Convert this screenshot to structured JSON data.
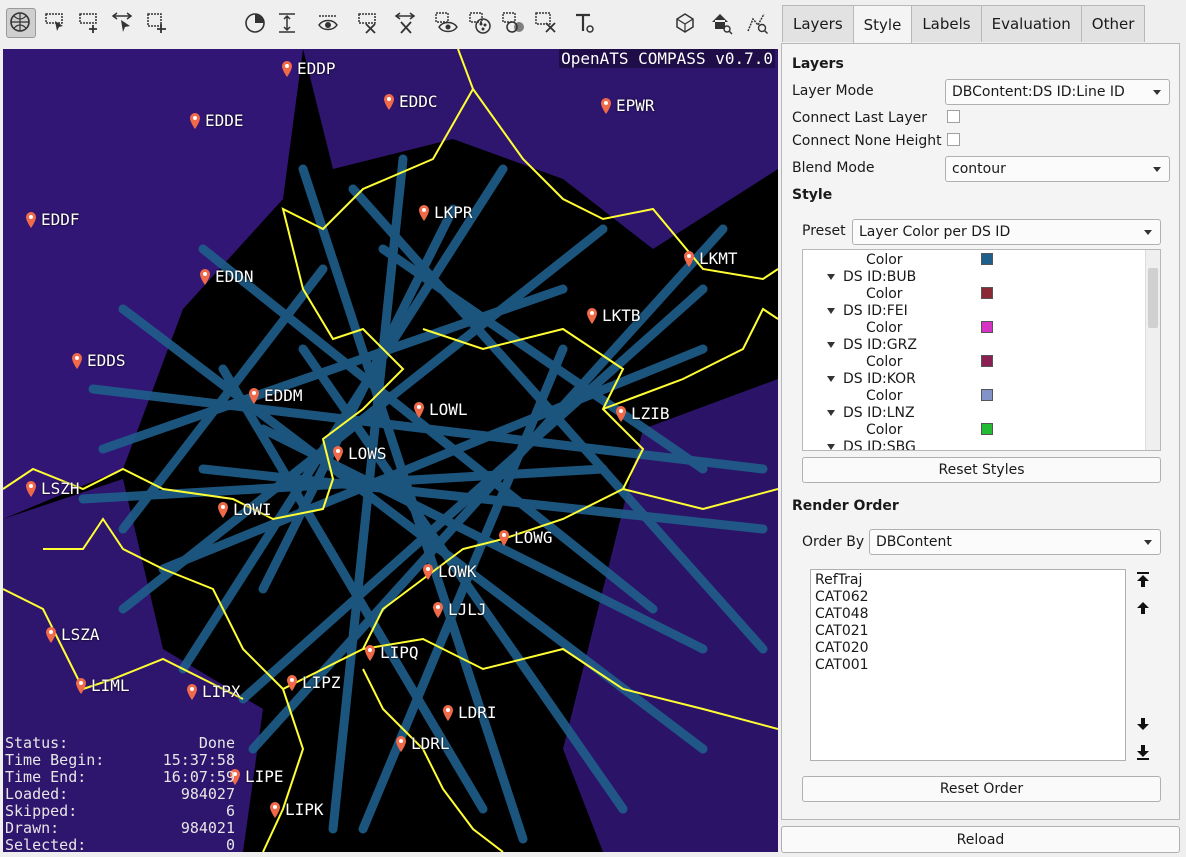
{
  "toolbar": {
    "left_tools": [
      "navigate-icon",
      "select-rect-icon",
      "add-rect-icon",
      "select-move-icon",
      "add-cross-icon"
    ],
    "mid_tools": [
      "time-filter-icon",
      "height-filter-icon",
      "show-selected-icon",
      "clear-selection-icon",
      "invert-selection-icon",
      "inspect-icon",
      "style-icon",
      "compare-icon",
      "delete-icon",
      "label-tool-icon"
    ],
    "right_tools": [
      "3d-view-icon",
      "home-zoom-icon",
      "zoom-data-icon"
    ]
  },
  "map": {
    "version": "OpenATS COMPASS v0.7.0",
    "airports": [
      "EDDP",
      "EDDC",
      "EPWR",
      "EDDE",
      "EDDF",
      "LKPR",
      "LKMT",
      "EDDN",
      "LKTB",
      "EDDS",
      "EDDM",
      "LOWL",
      "LZIB",
      "LOWS",
      "LSZH",
      "LOWI",
      "LOWG",
      "LOWK",
      "LJLJ",
      "LSZA",
      "LIPQ",
      "LIML",
      "LIPX",
      "LIPZ",
      "LDRI",
      "LDRL",
      "LIPE",
      "LIPK"
    ],
    "colors": {
      "background": "#000000",
      "traffic": "#1f5f8b",
      "border": "#ffff00",
      "region": "#3a1a8a"
    }
  },
  "status": {
    "rows": [
      {
        "label": "Status:",
        "value": "Done"
      },
      {
        "label": "Time Begin:",
        "value": "15:37:58"
      },
      {
        "label": "Time End:",
        "value": "16:07:59"
      },
      {
        "label": "Loaded:",
        "value": "984027"
      },
      {
        "label": "Skipped:",
        "value": "6"
      },
      {
        "label": "Drawn:",
        "value": "984021"
      },
      {
        "label": "Selected:",
        "value": "0"
      }
    ]
  },
  "tabs": [
    "Layers",
    "Style",
    "Labels",
    "Evaluation",
    "Other"
  ],
  "panel": {
    "layers_heading": "Layers",
    "layer_mode_label": "Layer Mode",
    "layer_mode_value": "DBContent:DS ID:Line ID",
    "connect_last_layer_label": "Connect Last Layer",
    "connect_none_height_label": "Connect None Height",
    "blend_mode_label": "Blend Mode",
    "blend_mode_value": "contour",
    "style_heading": "Style",
    "preset_label": "Preset",
    "preset_value": "Layer Color per DS ID",
    "tree_rows": [
      {
        "text": "Color",
        "type": "color",
        "color": "#1f5f8b"
      },
      {
        "text": "DS ID:BUB",
        "type": "group"
      },
      {
        "text": "Color",
        "type": "color",
        "color": "#8b2a35"
      },
      {
        "text": "DS ID:FEI",
        "type": "group"
      },
      {
        "text": "Color",
        "type": "color",
        "color": "#d633c4"
      },
      {
        "text": "DS ID:GRZ",
        "type": "group"
      },
      {
        "text": "Color",
        "type": "color",
        "color": "#8a1f52"
      },
      {
        "text": "DS ID:KOR",
        "type": "group"
      },
      {
        "text": "Color",
        "type": "color",
        "color": "#8393c9"
      },
      {
        "text": "DS ID:LNZ",
        "type": "group"
      },
      {
        "text": "Color",
        "type": "color",
        "color": "#22bb33"
      },
      {
        "text": "DS ID:SBG",
        "type": "group"
      }
    ],
    "reset_styles_label": "Reset Styles",
    "render_order_heading": "Render Order",
    "order_by_label": "Order By",
    "order_by_value": "DBContent",
    "order_items": [
      "RefTraj",
      "CAT062",
      "CAT048",
      "CAT021",
      "CAT020",
      "CAT001"
    ],
    "reset_order_label": "Reset Order"
  },
  "reload_label": "Reload"
}
